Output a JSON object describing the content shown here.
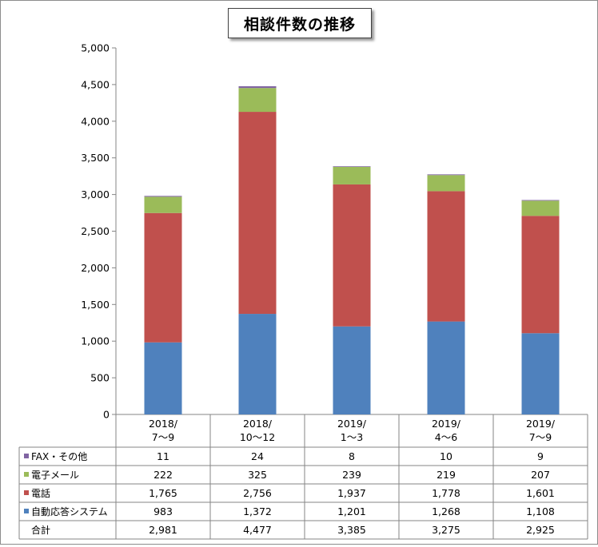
{
  "chart_data": {
    "type": "bar",
    "stacked": true,
    "title": "相談件数の推移",
    "categories": [
      [
        "2018/",
        "7〜9"
      ],
      [
        "2018/",
        "10〜12"
      ],
      [
        "2019/",
        "1〜3"
      ],
      [
        "2019/",
        "4〜6"
      ],
      [
        "2019/",
        "7〜9"
      ]
    ],
    "ylim": [
      0,
      5000
    ],
    "yticks": [
      "0",
      "500",
      "1,000",
      "1,500",
      "2,000",
      "2,500",
      "3,000",
      "3,500",
      "4,000",
      "4,500",
      "5,000"
    ],
    "grid": false,
    "series": [
      {
        "name": "自動応答システム",
        "color": "#4f81bd",
        "values": [
          983,
          1372,
          1201,
          1268,
          1108
        ],
        "labels": [
          "983",
          "1,372",
          "1,201",
          "1,268",
          "1,108"
        ]
      },
      {
        "name": "電話",
        "color": "#c0504d",
        "values": [
          1765,
          2756,
          1937,
          1778,
          1601
        ],
        "labels": [
          "1,765",
          "2,756",
          "1,937",
          "1,778",
          "1,601"
        ]
      },
      {
        "name": "電子メール",
        "color": "#9bbb59",
        "values": [
          222,
          325,
          239,
          219,
          207
        ],
        "labels": [
          "222",
          "325",
          "239",
          "219",
          "207"
        ]
      },
      {
        "name": "FAX・その他",
        "color": "#8064a2",
        "values": [
          11,
          24,
          8,
          10,
          9
        ],
        "labels": [
          "11",
          "24",
          "8",
          "10",
          "9"
        ]
      }
    ],
    "total": {
      "name": "合計",
      "labels": [
        "2,981",
        "4,477",
        "3,385",
        "3,275",
        "2,925"
      ]
    }
  }
}
